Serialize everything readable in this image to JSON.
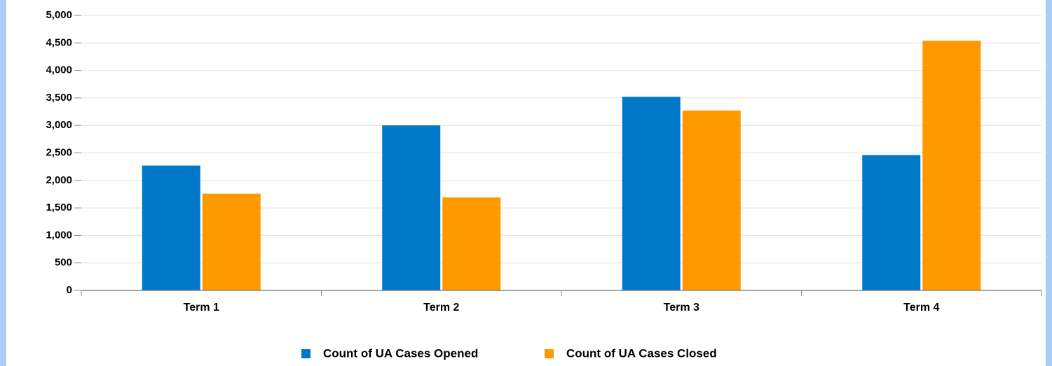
{
  "chart_data": {
    "type": "bar",
    "categories": [
      "Term 1",
      "Term 2",
      "Term 3",
      "Term 4"
    ],
    "series": [
      {
        "name": "Count of UA Cases Opened",
        "color": "#0078c8",
        "values": [
          2270,
          3000,
          3520,
          2460
        ]
      },
      {
        "name": "Count of UA Cases Closed",
        "color": "#ff9900",
        "values": [
          1760,
          1690,
          3270,
          4540
        ]
      }
    ],
    "ylim": [
      0,
      5000
    ],
    "yticks": [
      0,
      500,
      {
        "value": 1000,
        "label": "1,000"
      },
      {
        "value": 1500,
        "label": "1,500"
      },
      {
        "value": 2000,
        "label": "2,000"
      },
      {
        "value": 2500,
        "label": "2,500"
      },
      {
        "value": 3000,
        "label": "3,000"
      },
      {
        "value": 3500,
        "label": "3,500"
      },
      {
        "value": 4000,
        "label": "4,000"
      },
      {
        "value": 4500,
        "label": "4,500"
      },
      {
        "value": 5000,
        "label": "5,000"
      }
    ],
    "grid": true,
    "legend": "bottom"
  }
}
